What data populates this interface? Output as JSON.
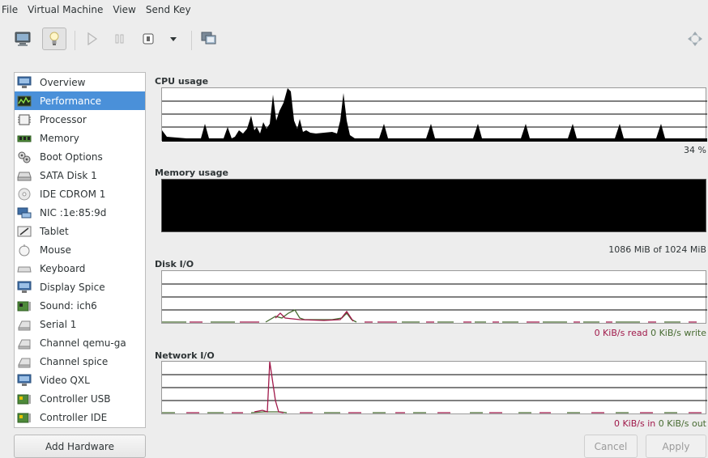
{
  "menu": [
    "File",
    "Virtual Machine",
    "View",
    "Send Key"
  ],
  "toolbar": {
    "icons": [
      "console-icon",
      "details-bulb-icon",
      "run-icon",
      "pause-icon",
      "shutdown-icon",
      "shutdown-dropdown-icon",
      "snapshots-icon",
      "fullscreen-icon"
    ]
  },
  "sidebar": {
    "selected": "Performance",
    "items": [
      {
        "label": "Overview",
        "icon": "monitor-icon"
      },
      {
        "label": "Performance",
        "icon": "performance-graph-icon"
      },
      {
        "label": "Processor",
        "icon": "cpu-chip-icon"
      },
      {
        "label": "Memory",
        "icon": "memory-module-icon"
      },
      {
        "label": "Boot Options",
        "icon": "gears-icon"
      },
      {
        "label": "SATA Disk 1",
        "icon": "hard-disk-icon"
      },
      {
        "label": "IDE CDROM 1",
        "icon": "cdrom-icon"
      },
      {
        "label": "NIC :1e:85:9d",
        "icon": "network-card-icon"
      },
      {
        "label": "Tablet",
        "icon": "tablet-icon"
      },
      {
        "label": "Mouse",
        "icon": "mouse-icon"
      },
      {
        "label": "Keyboard",
        "icon": "keyboard-icon"
      },
      {
        "label": "Display Spice",
        "icon": "display-icon"
      },
      {
        "label": "Sound: ich6",
        "icon": "sound-card-icon"
      },
      {
        "label": "Serial 1",
        "icon": "serial-port-icon"
      },
      {
        "label": "Channel qemu-ga",
        "icon": "channel-icon"
      },
      {
        "label": "Channel spice",
        "icon": "channel-icon"
      },
      {
        "label": "Video QXL",
        "icon": "video-card-icon"
      },
      {
        "label": "Controller USB",
        "icon": "controller-icon"
      },
      {
        "label": "Controller IDE",
        "icon": "controller-icon"
      }
    ],
    "add_hardware": "Add Hardware"
  },
  "performance": {
    "cpu": {
      "label": "CPU usage",
      "readout": "34 %"
    },
    "memory": {
      "label": "Memory usage",
      "readout": "1086 MiB of 1024 MiB"
    },
    "disk": {
      "label": "Disk I/O",
      "read": "0 KiB/s read",
      "write": "0 KiB/s write"
    },
    "network": {
      "label": "Network I/O",
      "in": "0 KiB/s in",
      "out": "0 KiB/s out"
    }
  },
  "buttons": {
    "cancel": "Cancel",
    "apply": "Apply"
  },
  "colors": {
    "selection": "#4a90d9",
    "read_in": "#a0194a",
    "write_out": "#476b31",
    "graph_fill": "#000000"
  }
}
